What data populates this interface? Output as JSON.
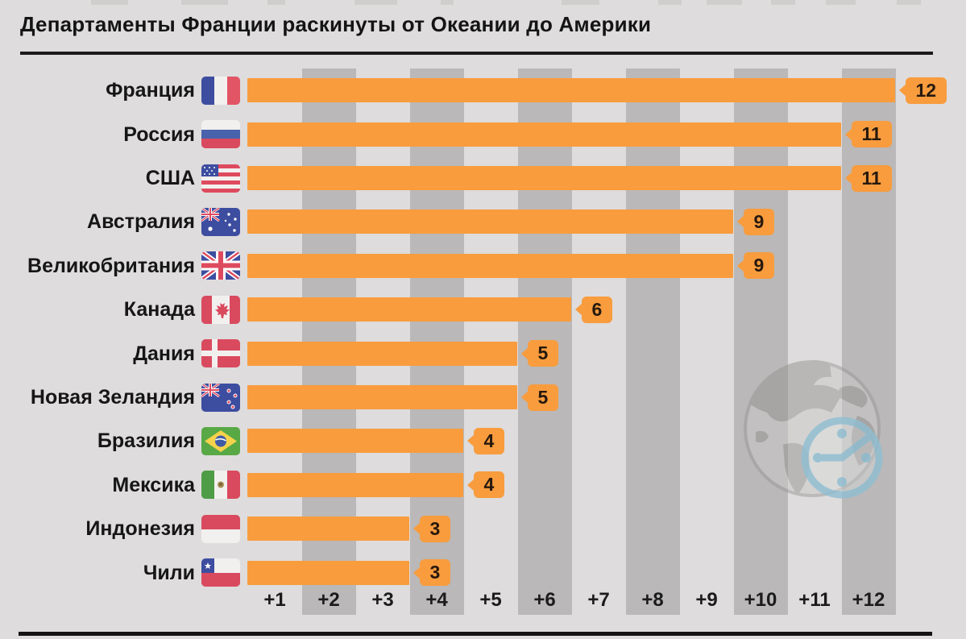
{
  "page": {
    "background": "#dedcdc",
    "accent_orange": "#F89C3E",
    "stripe_gray": "#BAB8B8",
    "rule_dark": "#1B1B1B",
    "badge_text": "#27190D",
    "globe_gray": "#989595",
    "clock_blue": "#8FBFD3"
  },
  "header": {
    "title": "Департаменты Франции раскинуты от Океании до Америки"
  },
  "chart_data": {
    "type": "bar",
    "orientation": "horizontal",
    "title": "Департаменты Франции раскинуты от Океании до Америки",
    "categories": [
      "Франция",
      "Россия",
      "США",
      "Австралия",
      "Великобритания",
      "Канада",
      "Дания",
      "Новая Зеландия",
      "Бразилия",
      "Мексика",
      "Индонезия",
      "Чили"
    ],
    "values": [
      12,
      11,
      11,
      9,
      9,
      6,
      5,
      5,
      4,
      4,
      3,
      3
    ],
    "flag_ids": [
      "fr",
      "ru",
      "us",
      "au",
      "gb",
      "ca",
      "dk",
      "nz",
      "br",
      "mx",
      "id",
      "cl"
    ],
    "flag_icons": [
      "flag-france-icon",
      "flag-russia-icon",
      "flag-usa-icon",
      "flag-australia-icon",
      "flag-uk-icon",
      "flag-canada-icon",
      "flag-denmark-icon",
      "flag-new-zealand-icon",
      "flag-brazil-icon",
      "flag-mexico-icon",
      "flag-indonesia-icon",
      "flag-chile-icon"
    ],
    "x_ticks": [
      "+1",
      "+2",
      "+3",
      "+4",
      "+5",
      "+6",
      "+7",
      "+8",
      "+9",
      "+10",
      "+11",
      "+12"
    ],
    "xlim": [
      0,
      12
    ],
    "grid": "shaded gray columns behind even ticks",
    "legend": "none",
    "bar_color": "#F89C3E",
    "value_labels": "orange tag badges with left notch at bar ends"
  },
  "watermark": {
    "icon": "globe-clock-watermark"
  }
}
